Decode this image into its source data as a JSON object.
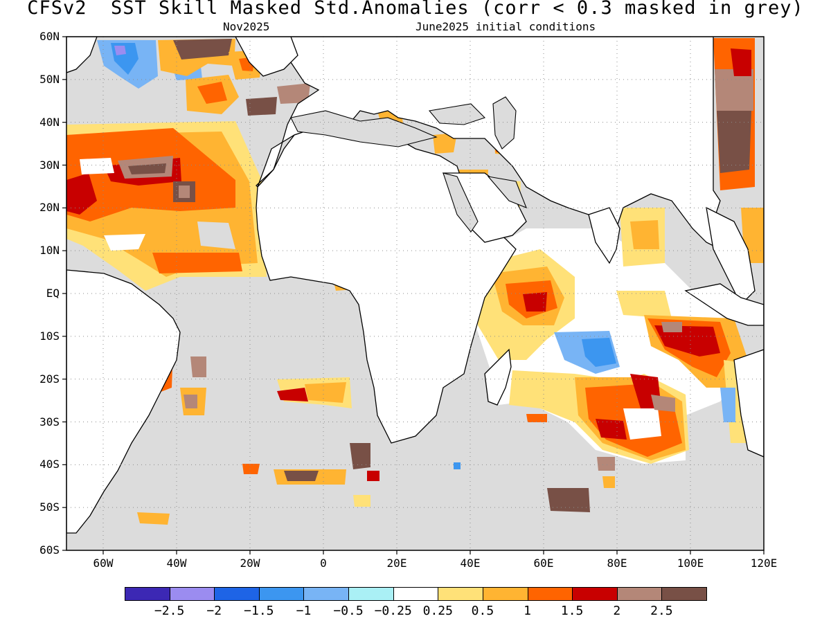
{
  "title": "CFSv2  SST Skill Masked Std.Anomalies (corr < 0.3 masked in grey)",
  "subtitle_left": "Nov2025",
  "subtitle_right": "June2025 initial conditions",
  "map": {
    "lon_range": [
      -70,
      120
    ],
    "lat_range": [
      -60,
      60
    ],
    "mask_color": "#dcdcdc",
    "land_color": "#ffffff",
    "coast_color": "#000000",
    "y_ticks": [
      "60N",
      "50N",
      "40N",
      "30N",
      "20N",
      "10N",
      "EQ",
      "10S",
      "20S",
      "30S",
      "40S",
      "50S",
      "60S"
    ],
    "y_tick_lats": [
      60,
      50,
      40,
      30,
      20,
      10,
      0,
      -10,
      -20,
      -30,
      -40,
      -50,
      -60
    ],
    "x_ticks": [
      "60W",
      "40W",
      "20W",
      "0",
      "20E",
      "40E",
      "60E",
      "80E",
      "100E",
      "120E"
    ],
    "x_tick_lons": [
      -60,
      -40,
      -20,
      0,
      20,
      40,
      60,
      80,
      100,
      120
    ]
  },
  "colorbar": {
    "colors": [
      "#3c28b4",
      "#9b8cf0",
      "#1e64e6",
      "#3c96f0",
      "#78b4f5",
      "#aaf0f5",
      "#ffffff",
      "#ffe178",
      "#ffb432",
      "#ff6400",
      "#c80000",
      "#b48778",
      "#785046"
    ],
    "labels": [
      "−2.5",
      "−2",
      "−1.5",
      "−1",
      "−0.5",
      "−0.25",
      "0.25",
      "0.5",
      "1",
      "1.5",
      "2",
      "2.5"
    ],
    "thresholds": [
      -2.5,
      -2,
      -1.5,
      -1,
      -0.5,
      -0.25,
      0.25,
      0.5,
      1,
      1.5,
      2,
      2.5
    ]
  }
}
